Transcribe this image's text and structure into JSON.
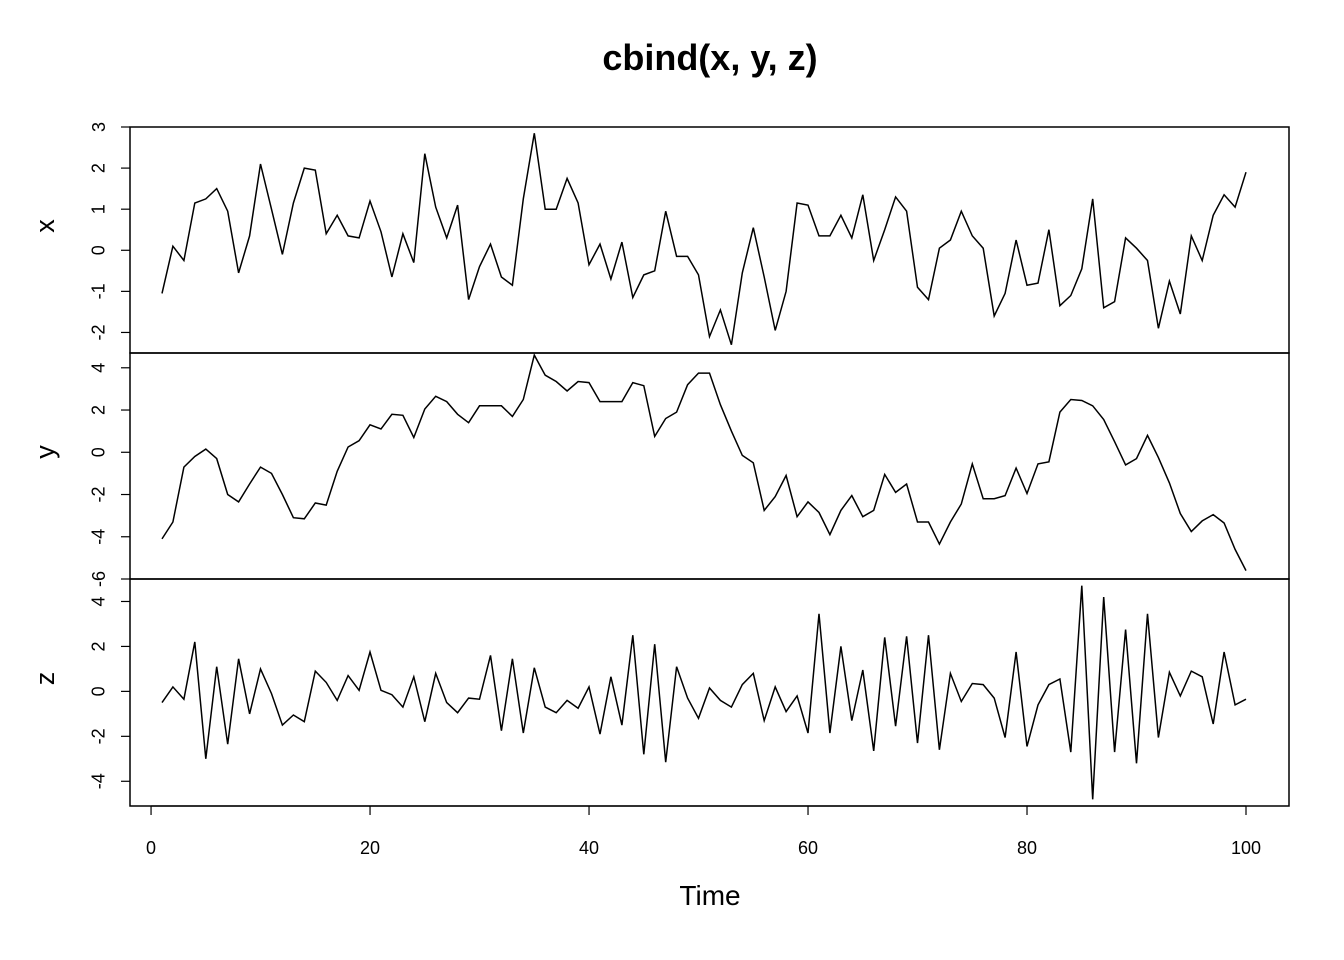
{
  "chart_data": {
    "type": "line",
    "title": "cbind(x, y, z)",
    "xlabel": "Time",
    "xlim": [
      1,
      100
    ],
    "x_ticks": [
      0,
      20,
      40,
      60,
      80,
      100
    ],
    "grid": false,
    "series": [
      {
        "name": "x",
        "ylim": [
          -2.5,
          3.0
        ],
        "y_ticks": [
          -2,
          -1,
          0,
          1,
          2,
          3
        ],
        "values": [
          -1.05,
          0.1,
          -0.25,
          1.15,
          1.25,
          1.5,
          0.95,
          -0.55,
          0.35,
          2.1,
          1.0,
          -0.1,
          1.15,
          2.0,
          1.95,
          0.4,
          0.85,
          0.35,
          0.3,
          1.2,
          0.45,
          -0.65,
          0.4,
          -0.3,
          2.35,
          1.05,
          0.3,
          1.1,
          -1.2,
          -0.4,
          0.15,
          -0.65,
          -0.85,
          1.25,
          2.85,
          1.0,
          1.0,
          1.75,
          1.15,
          -0.35,
          0.15,
          -0.7,
          0.2,
          -1.15,
          -0.6,
          -0.5,
          0.95,
          -0.15,
          -0.15,
          -0.6,
          -2.1,
          -1.45,
          -2.3,
          -0.55,
          0.55,
          -0.65,
          -1.95,
          -1.0,
          1.15,
          1.1,
          0.35,
          0.35,
          0.85,
          0.3,
          1.35,
          -0.25,
          0.5,
          1.3,
          0.95,
          -0.9,
          -1.2,
          0.05,
          0.25,
          0.95,
          0.35,
          0.05,
          -1.6,
          -1.05,
          0.25,
          -0.85,
          -0.8,
          0.5,
          -1.35,
          -1.1,
          -0.45,
          1.25,
          -1.4,
          -1.25,
          0.3,
          0.05,
          -0.25,
          -1.9,
          -0.75,
          -1.55,
          0.35,
          -0.25,
          0.85,
          1.35,
          1.05,
          1.9
        ]
      },
      {
        "name": "y",
        "ylim": [
          -6,
          4.7
        ],
        "y_ticks": [
          -6,
          -4,
          -2,
          0,
          2,
          4
        ],
        "values": [
          -4.1,
          -3.3,
          -0.7,
          -0.2,
          0.15,
          -0.3,
          -2.0,
          -2.35,
          -1.5,
          -0.7,
          -1.0,
          -2.0,
          -3.1,
          -3.15,
          -2.4,
          -2.5,
          -0.9,
          0.25,
          0.55,
          1.3,
          1.1,
          1.8,
          1.75,
          0.7,
          2.05,
          2.65,
          2.4,
          1.8,
          1.4,
          2.2,
          2.2,
          2.2,
          1.7,
          2.5,
          4.6,
          3.65,
          3.35,
          2.9,
          3.35,
          3.3,
          2.4,
          2.4,
          2.4,
          3.3,
          3.15,
          0.75,
          1.6,
          1.9,
          3.2,
          3.75,
          3.75,
          2.25,
          1.0,
          -0.15,
          -0.5,
          -2.75,
          -2.1,
          -1.1,
          -3.05,
          -2.35,
          -2.85,
          -3.9,
          -2.75,
          -2.05,
          -3.05,
          -2.75,
          -1.05,
          -1.9,
          -1.5,
          -3.3,
          -3.3,
          -4.35,
          -3.3,
          -2.45,
          -0.55,
          -2.2,
          -2.2,
          -2.05,
          -0.75,
          -1.95,
          -0.55,
          -0.45,
          1.9,
          2.5,
          2.45,
          2.2,
          1.55,
          0.5,
          -0.6,
          -0.3,
          0.8,
          -0.25,
          -1.45,
          -2.9,
          -3.75,
          -3.25,
          -2.95,
          -3.35,
          -4.6,
          -5.6
        ]
      },
      {
        "name": "z",
        "ylim": [
          -5.1,
          5.0
        ],
        "y_ticks": [
          -4,
          -2,
          0,
          2,
          4
        ],
        "values": [
          -0.5,
          0.2,
          -0.35,
          2.2,
          -3.0,
          1.1,
          -2.35,
          1.45,
          -1.0,
          1.0,
          -0.1,
          -1.5,
          -1.05,
          -1.35,
          0.9,
          0.4,
          -0.4,
          0.7,
          0.05,
          1.75,
          0.05,
          -0.15,
          -0.7,
          0.65,
          -1.35,
          0.8,
          -0.5,
          -0.95,
          -0.3,
          -0.35,
          1.6,
          -1.75,
          1.45,
          -1.85,
          1.05,
          -0.7,
          -0.95,
          -0.4,
          -0.75,
          0.2,
          -1.9,
          0.65,
          -1.5,
          2.5,
          -2.8,
          2.1,
          -3.15,
          1.1,
          -0.3,
          -1.2,
          0.15,
          -0.4,
          -0.7,
          0.3,
          0.8,
          -1.3,
          0.2,
          -0.9,
          -0.2,
          -1.85,
          3.45,
          -1.85,
          2.0,
          -1.3,
          0.95,
          -2.65,
          2.4,
          -1.55,
          2.45,
          -2.3,
          2.5,
          -2.6,
          0.8,
          -0.45,
          0.35,
          0.3,
          -0.3,
          -2.05,
          1.75,
          -2.45,
          -0.6,
          0.3,
          0.55,
          -2.7,
          4.7,
          -4.8,
          4.2,
          -2.7,
          2.75,
          -3.2,
          3.45,
          -2.05,
          0.85,
          -0.2,
          0.9,
          0.65,
          -1.45,
          1.75,
          -0.6,
          -0.35
        ]
      }
    ]
  },
  "colors": {
    "line": "#000000",
    "frame": "#000000",
    "background": "#ffffff"
  }
}
